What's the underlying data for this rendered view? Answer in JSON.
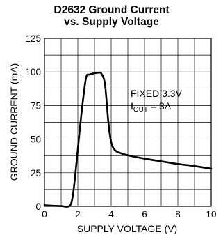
{
  "chart_data": {
    "type": "line",
    "title_prefix": "D2632",
    "title_line1": "Ground Current",
    "title_line2": "vs. Supply Voltage",
    "xlabel": "SUPPLY VOLTAGE (V)",
    "ylabel": "GROUND CURRENT (mA)",
    "xlim": [
      0,
      10
    ],
    "ylim": [
      0,
      125
    ],
    "xticks": [
      0,
      2,
      4,
      6,
      8,
      10
    ],
    "yticks": [
      0,
      25,
      50,
      75,
      100,
      125
    ],
    "grid": true,
    "annotation": {
      "line1": "FIXED 3.3V",
      "line2_prefix": "I",
      "line2_sub": "OUT",
      "line2_suffix": " = 3A"
    },
    "series": [
      {
        "x": [
          0,
          0.5,
          1.0,
          1.5,
          1.7,
          1.9,
          2.1,
          2.3,
          2.5,
          2.7,
          3.0,
          3.2,
          3.4,
          3.6,
          3.7,
          3.8,
          3.9,
          4.0,
          4.1,
          4.3,
          4.6,
          5.0,
          6.0,
          7.0,
          8.0,
          9.0,
          10.0
        ],
        "y": [
          0.8,
          0.4,
          0.2,
          0.3,
          8,
          30,
          55,
          78,
          96,
          98,
          99,
          99.4,
          99,
          93,
          82,
          67,
          55,
          48,
          44,
          41,
          39.5,
          38,
          35.5,
          33.5,
          31.5,
          30,
          28
        ]
      }
    ]
  }
}
